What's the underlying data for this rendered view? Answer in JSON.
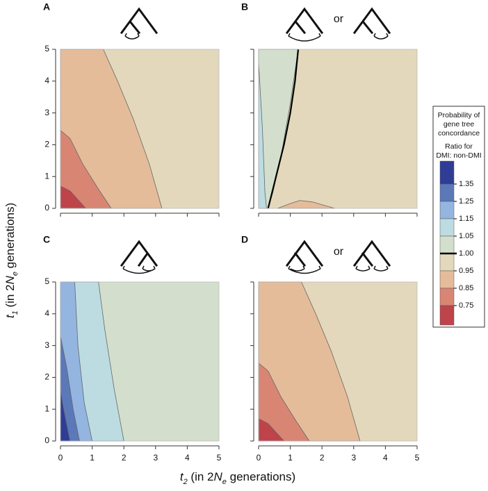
{
  "chart_data": [
    {
      "type": "contour",
      "label": "A",
      "xlim": [
        0,
        5
      ],
      "ylim": [
        0,
        5
      ],
      "xticks": [
        0,
        1,
        2,
        3,
        4,
        5
      ],
      "yticks": [
        0,
        1,
        2,
        3,
        4,
        5
      ],
      "xtick_labels": false,
      "ytick_labels": true
    },
    {
      "type": "contour",
      "label": "B",
      "annotation": "or",
      "xlim": [
        0,
        5
      ],
      "ylim": [
        0,
        5
      ],
      "xticks": [
        0,
        1,
        2,
        3,
        4,
        5
      ],
      "yticks": [
        0,
        1,
        2,
        3,
        4,
        5
      ],
      "xtick_labels": false,
      "ytick_labels": false
    },
    {
      "type": "contour",
      "label": "C",
      "xlim": [
        0,
        5
      ],
      "ylim": [
        0,
        5
      ],
      "xticks": [
        0,
        1,
        2,
        3,
        4,
        5
      ],
      "yticks": [
        0,
        1,
        2,
        3,
        4,
        5
      ],
      "xtick_labels": true,
      "ytick_labels": true
    },
    {
      "type": "contour",
      "label": "D",
      "annotation": "or",
      "xlim": [
        0,
        5
      ],
      "ylim": [
        0,
        5
      ],
      "xticks": [
        0,
        1,
        2,
        3,
        4,
        5
      ],
      "yticks": [
        0,
        1,
        2,
        3,
        4,
        5
      ],
      "xtick_labels": true,
      "ytick_labels": false
    }
  ],
  "x_label": [
    "t",
    "2",
    " (in 2",
    "N",
    "e",
    " generations)"
  ],
  "y_label": [
    "t",
    "1",
    " (in 2",
    "N",
    "e",
    " generations)"
  ],
  "legend": {
    "title": [
      "Probability of",
      "gene tree",
      "concordance"
    ],
    "subtitle": [
      "Ratio for",
      "DMI: non-DMI"
    ],
    "ticks": [
      1.35,
      1.25,
      1.15,
      1.05,
      {
        "value": 1,
        "label": "1.00"
      },
      0.95,
      0.85,
      0.75
    ],
    "colors": [
      "#2f3d96",
      "#5b78b9",
      "#93b5e0",
      "#bcdce2",
      "#d3dfcc",
      "#e3d8bb",
      "#e5bc9a",
      "#d98573",
      "#bf434a"
    ]
  }
}
